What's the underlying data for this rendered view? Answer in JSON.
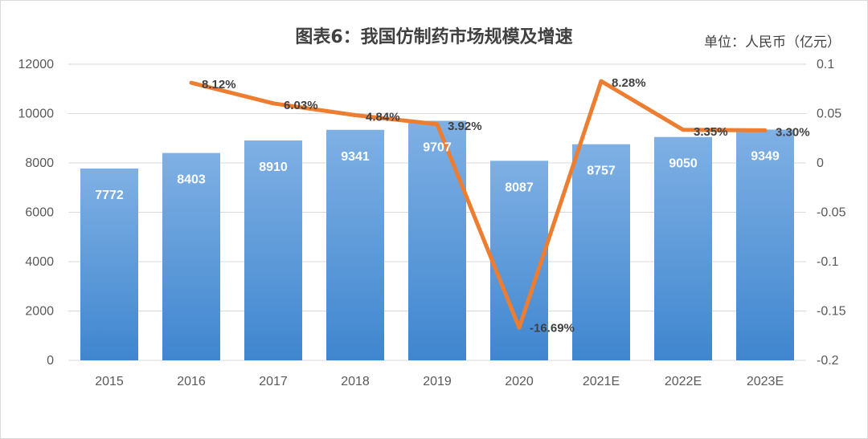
{
  "header": {
    "title": "图表6：我国仿制药市场规模及增速",
    "unit": "单位：人民币（亿元）"
  },
  "colors": {
    "bar_top": "#7fb0e4",
    "bar_bottom": "#3f86cf",
    "line": "#ed7d31",
    "grid": "#d9d9d9"
  },
  "chart_data": {
    "type": "bar",
    "title": "图表6：我国仿制药市场规模及增速",
    "categories": [
      "2015",
      "2016",
      "2017",
      "2018",
      "2019",
      "2020",
      "2021E",
      "2022E",
      "2023E"
    ],
    "series": [
      {
        "values": [
          7772,
          8403,
          8910,
          9341,
          9707,
          8087,
          8757,
          9050,
          9349
        ],
        "data_labels": [
          "7772",
          "8403",
          "8910",
          "9341",
          "9707",
          "8087",
          "8757",
          "9050",
          "9349"
        ],
        "axis": "left"
      },
      {
        "type": "line",
        "axis": "right",
        "values": [
          null,
          0.0812,
          0.0603,
          0.0484,
          0.0392,
          -0.1669,
          0.0828,
          0.0335,
          0.033
        ],
        "data_labels": [
          "",
          "8.12%",
          "6.03%",
          "4.84%",
          "3.92%",
          "-16.69%",
          "8.28%",
          "3.35%",
          "3.30%"
        ]
      }
    ],
    "y_left": {
      "range": [
        0,
        12000
      ],
      "ticks": [
        "0",
        "2000",
        "4000",
        "6000",
        "8000",
        "10000",
        "12000"
      ]
    },
    "y_right": {
      "range": [
        -0.2,
        0.1
      ],
      "ticks": [
        "-0.2",
        "-0.15",
        "-0.1",
        "-0.05",
        "0",
        "0.05",
        "0.1"
      ]
    },
    "grid": true,
    "legend": "none"
  }
}
